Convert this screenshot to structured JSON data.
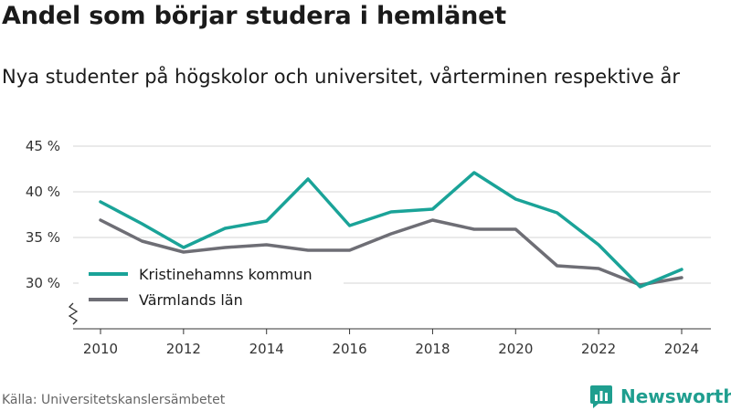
{
  "header": {
    "title": "Andel som börjar studera i hemlänet",
    "subtitle": "Nya studenter på högskolor och universitet, vårterminen respektive år"
  },
  "footer": {
    "source": "Källa: Universitetskanslersämbetet",
    "brand": "Newsworthy",
    "brand_color": "#1f9e8f",
    "brand_icon": "bar-chart-logo-icon"
  },
  "chart_data": {
    "type": "line",
    "title": "Andel som börjar studera i hemlänet",
    "subtitle": "Nya studenter på högskolor och universitet, vårterminen respektive år",
    "xlabel": "",
    "ylabel": "",
    "x": [
      2010,
      2011,
      2012,
      2013,
      2014,
      2015,
      2016,
      2017,
      2018,
      2019,
      2020,
      2021,
      2022,
      2023,
      2024
    ],
    "x_ticks": [
      "2010",
      "2012",
      "2014",
      "2016",
      "2018",
      "2020",
      "2022",
      "2024"
    ],
    "xlim": [
      2010,
      2024
    ],
    "ylim": [
      25,
      45
    ],
    "y_ticks": [
      {
        "value": 30,
        "label": "30 %"
      },
      {
        "value": 35,
        "label": "35 %"
      },
      {
        "value": 40,
        "label": "40 %"
      },
      {
        "value": 45,
        "label": "45 %"
      }
    ],
    "axis_break": true,
    "grid": true,
    "legend_position": "bottom-left",
    "series": [
      {
        "name": "Kristinehamns kommun",
        "color": "#1aa398",
        "values": [
          38.9,
          36.5,
          33.9,
          36.0,
          36.8,
          41.4,
          36.3,
          37.8,
          38.1,
          42.1,
          39.2,
          37.7,
          34.2,
          29.6,
          31.5
        ]
      },
      {
        "name": "Värmlands län",
        "color": "#6e6e75",
        "values": [
          36.9,
          34.6,
          33.4,
          33.9,
          34.2,
          33.6,
          33.6,
          35.4,
          36.9,
          35.9,
          35.9,
          31.9,
          31.6,
          29.8,
          30.6
        ]
      }
    ]
  }
}
